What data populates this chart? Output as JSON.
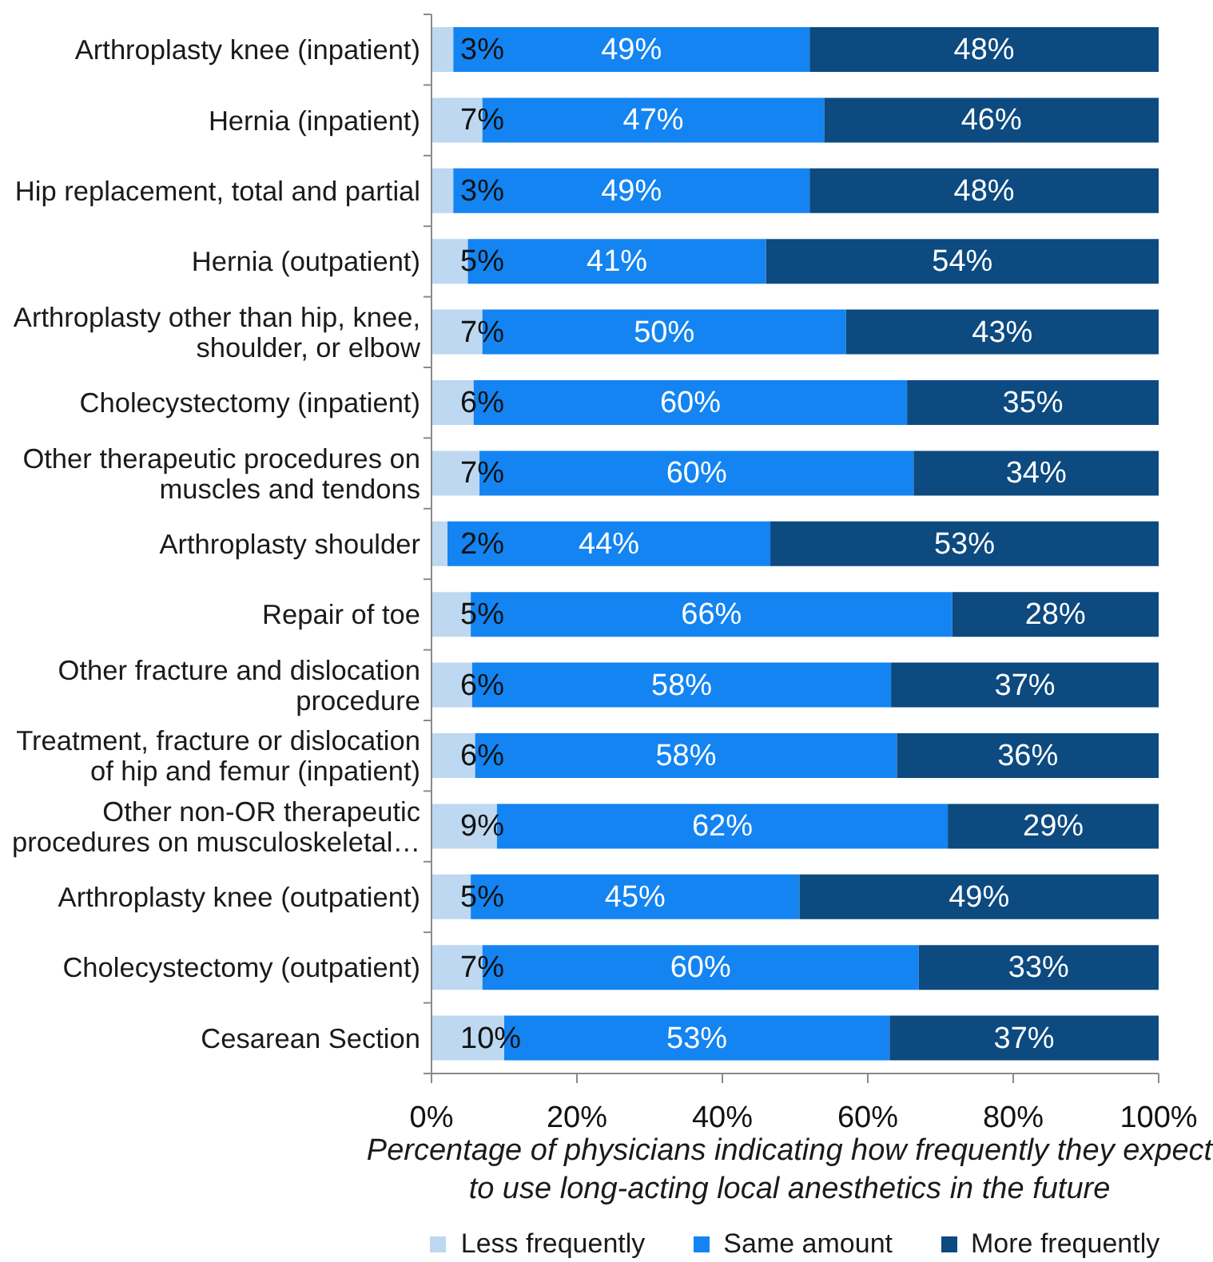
{
  "chart_data": {
    "type": "bar",
    "orientation": "horizontal",
    "stacked": true,
    "categories": [
      "Arthroplasty knee (inpatient)",
      "Hernia (inpatient)",
      "Hip replacement, total and partial",
      "Hernia (outpatient)",
      "Arthroplasty other than hip, knee, shoulder, or elbow",
      "Cholecystectomy (inpatient)",
      "Other therapeutic procedures on muscles and tendons",
      "Arthroplasty shoulder",
      "Repair of toe",
      "Other fracture and dislocation procedure",
      "Treatment, fracture or dislocation of hip and femur (inpatient)",
      "Other non-OR therapeutic procedures on musculoskeletal…",
      "Arthroplasty knee (outpatient)",
      "Cholecystectomy (outpatient)",
      "Cesarean Section"
    ],
    "series": [
      {
        "name": "Less frequently",
        "color": "#bdd8f0",
        "values": [
          3,
          7,
          3,
          5,
          7,
          5.8,
          6.6,
          2.2,
          5.4,
          5.6,
          6,
          9,
          5.4,
          7,
          10
        ],
        "value_labels": [
          "3%",
          "7%",
          "3%",
          "5%",
          "7%",
          "6%",
          "7%",
          "2%",
          "5%",
          "6%",
          "6%",
          "9%",
          "5%",
          "7%",
          "10%"
        ]
      },
      {
        "name": "Same amount",
        "color": "#1384f2",
        "values": [
          49,
          47,
          49,
          41,
          50,
          59.6,
          59.7,
          44.4,
          66.2,
          57.6,
          58,
          62,
          45.2,
          60,
          53
        ],
        "value_labels": [
          "49%",
          "47%",
          "49%",
          "41%",
          "50%",
          "60%",
          "60%",
          "44%",
          "66%",
          "58%",
          "58%",
          "62%",
          "45%",
          "60%",
          "53%"
        ]
      },
      {
        "name": "More frequently",
        "color": "#0c4a80",
        "values": [
          48,
          46,
          48,
          54,
          43,
          34.6,
          33.7,
          53.4,
          28.4,
          36.8,
          36,
          29,
          49.4,
          33,
          37
        ],
        "value_labels": [
          "48%",
          "46%",
          "48%",
          "54%",
          "43%",
          "35%",
          "34%",
          "53%",
          "28%",
          "37%",
          "36%",
          "29%",
          "49%",
          "33%",
          "37%"
        ]
      }
    ],
    "xlim": [
      0,
      100
    ],
    "xticks": [
      {
        "value": 0,
        "label": "0%"
      },
      {
        "value": 20,
        "label": "20%"
      },
      {
        "value": 40,
        "label": "40%"
      },
      {
        "value": 60,
        "label": "60%"
      },
      {
        "value": 80,
        "label": "80%"
      },
      {
        "value": 100,
        "label": "100%"
      }
    ],
    "xlabel": "Percentage of physicians indicating how frequently they expect to use long-acting local anesthetics in the future",
    "legend": "bottom"
  }
}
